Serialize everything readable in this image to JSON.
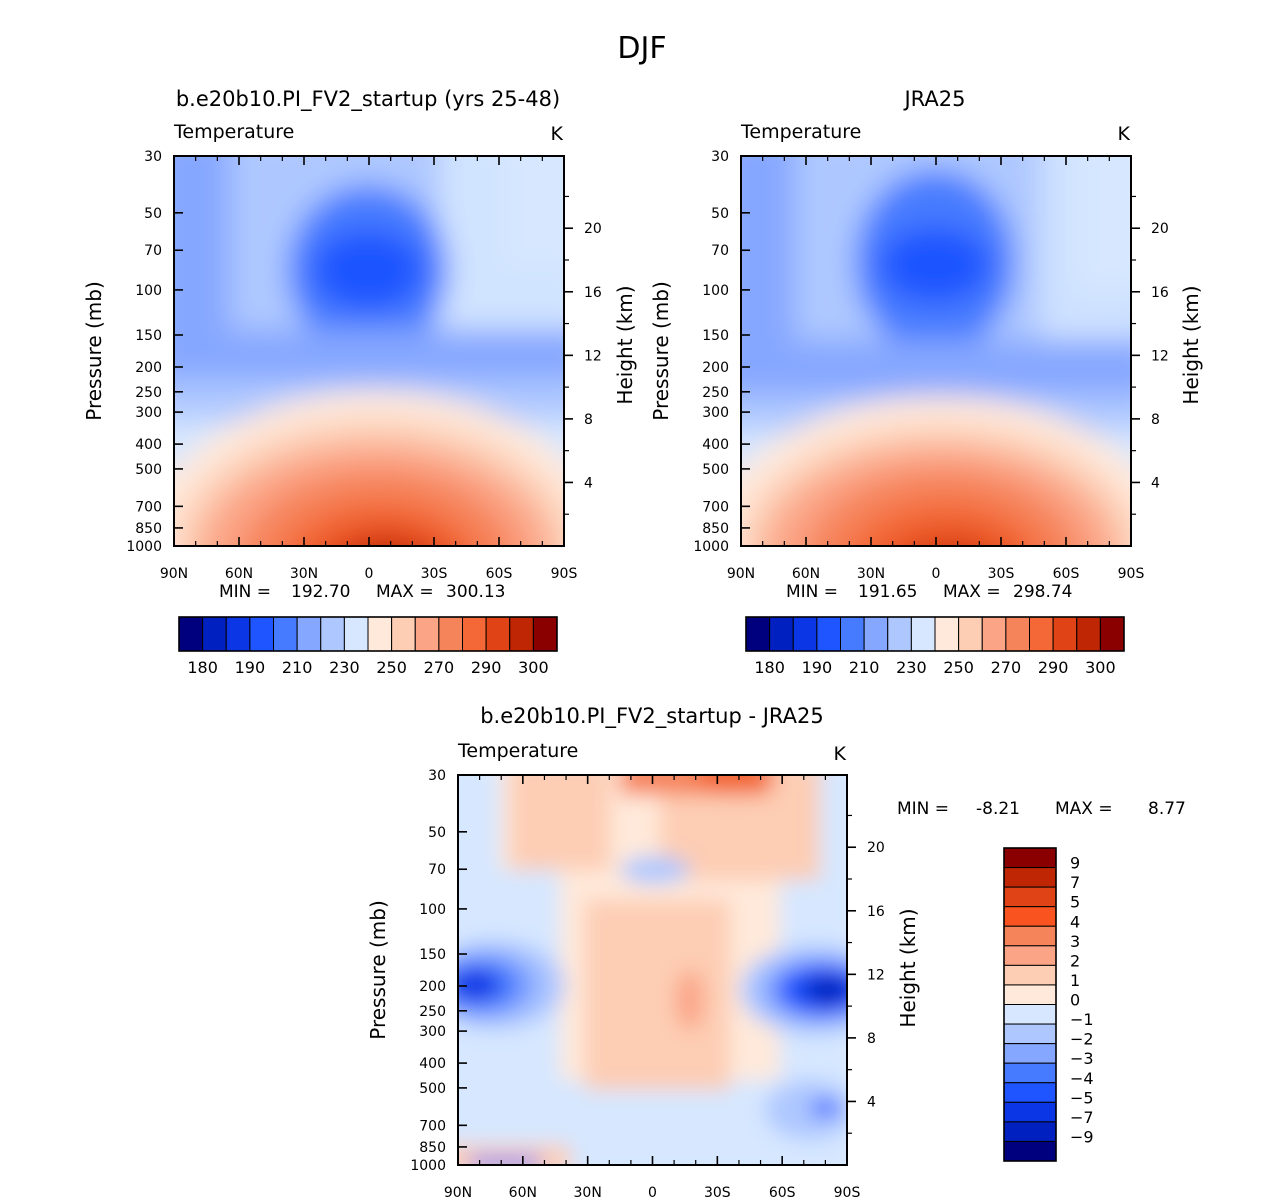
{
  "figure_title": "DJF",
  "chart_data": [
    {
      "type": "contour",
      "id": "model",
      "title": "b.e20b10.PI_FV2_startup (yrs 25-48)",
      "variable": "Temperature",
      "units": "K",
      "xlabel": "",
      "ylabel": "Pressure (mb)",
      "y2label": "Height (km)",
      "x_ticks": [
        "90N",
        "60N",
        "30N",
        "0",
        "30S",
        "60S",
        "90S"
      ],
      "x_values": [
        90,
        60,
        30,
        0,
        -30,
        -60,
        -90
      ],
      "y_ticks": [
        30,
        50,
        70,
        100,
        150,
        200,
        250,
        300,
        400,
        500,
        700,
        850,
        1000
      ],
      "y2_ticks": [
        20,
        16,
        12,
        8,
        4
      ],
      "min_label": "MIN =",
      "min": "192.70",
      "max_label": "MAX =",
      "max": "300.13",
      "levels": [
        180,
        185,
        190,
        200,
        210,
        220,
        230,
        240,
        250,
        260,
        270,
        280,
        290,
        295,
        300
      ],
      "colorbar_labels": [
        "180",
        "190",
        "210",
        "230",
        "250",
        "270",
        "290",
        "300"
      ],
      "colors": [
        "#00007f",
        "#0021c0",
        "#0a36e5",
        "#1f55ff",
        "#467bff",
        "#86a7ff",
        "#aec8ff",
        "#d6e7ff",
        "#ffe9da",
        "#fdcdb4",
        "#fba486",
        "#f6845b",
        "#f36836",
        "#e04416",
        "#bf2603",
        "#8a0000"
      ]
    },
    {
      "type": "contour",
      "id": "obs",
      "title": "JRA25",
      "variable": "Temperature",
      "units": "K",
      "xlabel": "",
      "ylabel": "Pressure (mb)",
      "y2label": "Height (km)",
      "x_ticks": [
        "90N",
        "60N",
        "30N",
        "0",
        "30S",
        "60S",
        "90S"
      ],
      "x_values": [
        90,
        60,
        30,
        0,
        -30,
        -60,
        -90
      ],
      "y_ticks": [
        30,
        50,
        70,
        100,
        150,
        200,
        250,
        300,
        400,
        500,
        700,
        850,
        1000
      ],
      "y2_ticks": [
        20,
        16,
        12,
        8,
        4
      ],
      "min_label": "MIN =",
      "min": "191.65",
      "max_label": "MAX =",
      "max": "298.74",
      "levels": [
        180,
        185,
        190,
        200,
        210,
        220,
        230,
        240,
        250,
        260,
        270,
        280,
        290,
        295,
        300
      ],
      "colorbar_labels": [
        "180",
        "190",
        "210",
        "230",
        "250",
        "270",
        "290",
        "300"
      ],
      "colors": [
        "#00007f",
        "#0021c0",
        "#0a36e5",
        "#1f55ff",
        "#467bff",
        "#86a7ff",
        "#aec8ff",
        "#d6e7ff",
        "#ffe9da",
        "#fdcdb4",
        "#fba486",
        "#f6845b",
        "#f36836",
        "#e04416",
        "#bf2603",
        "#8a0000"
      ]
    },
    {
      "type": "contour",
      "id": "diff",
      "title": "b.e20b10.PI_FV2_startup - JRA25",
      "variable": "Temperature",
      "units": "K",
      "xlabel": "",
      "ylabel": "Pressure (mb)",
      "y2label": "Height (km)",
      "x_ticks": [
        "90N",
        "60N",
        "30N",
        "0",
        "30S",
        "60S",
        "90S"
      ],
      "x_values": [
        90,
        60,
        30,
        0,
        -30,
        -60,
        -90
      ],
      "y_ticks": [
        30,
        50,
        70,
        100,
        150,
        200,
        250,
        300,
        400,
        500,
        700,
        850,
        1000
      ],
      "y2_ticks": [
        20,
        16,
        12,
        8,
        4
      ],
      "min_label": "MIN =",
      "min": "-8.21",
      "max_label": "MAX =",
      "max": "8.77",
      "levels": [
        -9,
        -7,
        -5,
        -4,
        -3,
        -2,
        -1,
        0,
        1,
        2,
        3,
        4,
        5,
        7,
        9
      ],
      "colorbar_labels": [
        "9",
        "7",
        "5",
        "4",
        "3",
        "2",
        "1",
        "0",
        "−1",
        "−2",
        "−3",
        "−4",
        "−5",
        "−7",
        "−9"
      ],
      "colors": [
        "#8a0000",
        "#bf2603",
        "#e04416",
        "#f9541f",
        "#f6845b",
        "#fba486",
        "#fdcdb4",
        "#ffe9da",
        "#d6e7ff",
        "#aec8ff",
        "#86a7ff",
        "#467bff",
        "#1f55ff",
        "#0a36e5",
        "#0021c0",
        "#00007f"
      ]
    }
  ]
}
